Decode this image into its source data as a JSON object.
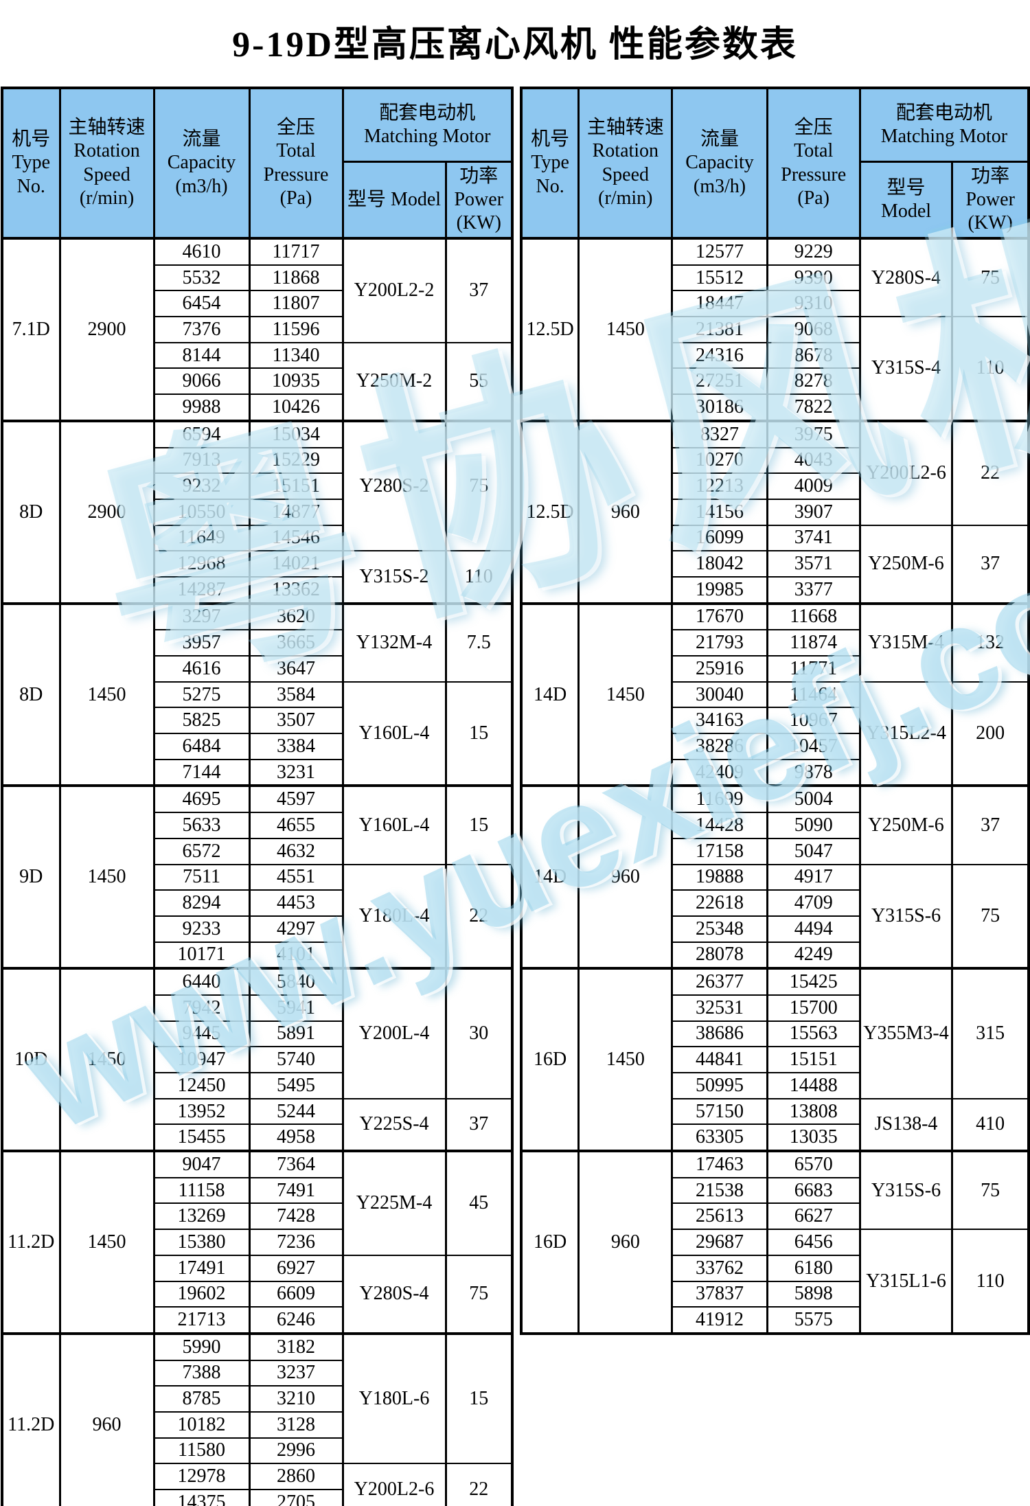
{
  "page_title": "9-19D型高压离心风机 性能参数表",
  "watermark": {
    "logo_text": "粤协风机",
    "site_url_text": "www.yuexiefj.com"
  },
  "colors": {
    "header_bg": "#8EC7F0",
    "group_green": "#CDF4CC",
    "group_white": "#FFFFFF",
    "border": "#000000",
    "watermark": "#7CC9E8"
  },
  "columns": {
    "type_no": [
      "机号",
      "Type",
      "No."
    ],
    "speed": [
      "主轴转速",
      "Rotation",
      "Speed",
      "(r/min)"
    ],
    "capacity": [
      "流量",
      "Capacity",
      "(m3/h)"
    ],
    "pressure": [
      "全压",
      "Total",
      "Pressure",
      "(Pa)"
    ],
    "motor_group": [
      "配套电动机",
      "Matching Motor"
    ],
    "model_left": "型号 Model",
    "model_right": [
      "型号",
      "Model"
    ],
    "power": [
      "功率",
      "Power",
      "(KW)"
    ]
  },
  "left_table": {
    "groups": [
      {
        "type_no": "7.1D",
        "speed": "2900",
        "shade": "white",
        "points": [
          {
            "c": "4610",
            "p": "11717"
          },
          {
            "c": "5532",
            "p": "11868"
          },
          {
            "c": "6454",
            "p": "11807"
          },
          {
            "c": "7376",
            "p": "11596"
          },
          {
            "c": "8144",
            "p": "11340"
          },
          {
            "c": "9066",
            "p": "10935"
          },
          {
            "c": "9988",
            "p": "10426"
          }
        ],
        "motors": [
          {
            "model": "Y200L2-2",
            "power": "37",
            "rows": 4
          },
          {
            "model": "Y250M-2",
            "power": "55",
            "rows": 3
          }
        ]
      },
      {
        "type_no": "8D",
        "speed": "2900",
        "shade": "green",
        "points": [
          {
            "c": "6594",
            "p": "15034"
          },
          {
            "c": "7913",
            "p": "15229"
          },
          {
            "c": "9232",
            "p": "15151"
          },
          {
            "c": "10550",
            "p": "14877"
          },
          {
            "c": "11649",
            "p": "14546"
          },
          {
            "c": "12968",
            "p": "14021"
          },
          {
            "c": "14287",
            "p": "13362"
          }
        ],
        "motors": [
          {
            "model": "Y280S-2",
            "power": "75",
            "rows": 5
          },
          {
            "model": "Y315S-2",
            "power": "110",
            "rows": 2
          }
        ]
      },
      {
        "type_no": "8D",
        "speed": "1450",
        "shade": "white",
        "points": [
          {
            "c": "3297",
            "p": "3620"
          },
          {
            "c": "3957",
            "p": "3665"
          },
          {
            "c": "4616",
            "p": "3647"
          },
          {
            "c": "5275",
            "p": "3584"
          },
          {
            "c": "5825",
            "p": "3507"
          },
          {
            "c": "6484",
            "p": "3384"
          },
          {
            "c": "7144",
            "p": "3231"
          }
        ],
        "motors": [
          {
            "model": "Y132M-4",
            "power": "7.5",
            "rows": 3
          },
          {
            "model": "Y160L-4",
            "power": "15",
            "rows": 4
          }
        ]
      },
      {
        "type_no": "9D",
        "speed": "1450",
        "shade": "green",
        "points": [
          {
            "c": "4695",
            "p": "4597"
          },
          {
            "c": "5633",
            "p": "4655"
          },
          {
            "c": "6572",
            "p": "4632"
          },
          {
            "c": "7511",
            "p": "4551"
          },
          {
            "c": "8294",
            "p": "4453"
          },
          {
            "c": "9233",
            "p": "4297"
          },
          {
            "c": "10171",
            "p": "4101"
          }
        ],
        "motors": [
          {
            "model": "Y160L-4",
            "power": "15",
            "rows": 3
          },
          {
            "model": "Y180L-4",
            "power": "22",
            "rows": 4
          }
        ]
      },
      {
        "type_no": "10D",
        "speed": "1450",
        "shade": "white",
        "points": [
          {
            "c": "6440",
            "p": "5840"
          },
          {
            "c": "7942",
            "p": "5941"
          },
          {
            "c": "9445",
            "p": "5891"
          },
          {
            "c": "10947",
            "p": "5740"
          },
          {
            "c": "12450",
            "p": "5495"
          },
          {
            "c": "13952",
            "p": "5244"
          },
          {
            "c": "15455",
            "p": "4958"
          }
        ],
        "motors": [
          {
            "model": "Y200L-4",
            "power": "30",
            "rows": 5
          },
          {
            "model": "Y225S-4",
            "power": "37",
            "rows": 2
          }
        ]
      },
      {
        "type_no": "11.2D",
        "speed": "1450",
        "shade": "green",
        "points": [
          {
            "c": "9047",
            "p": "7364"
          },
          {
            "c": "11158",
            "p": "7491"
          },
          {
            "c": "13269",
            "p": "7428"
          },
          {
            "c": "15380",
            "p": "7236"
          },
          {
            "c": "17491",
            "p": "6927"
          },
          {
            "c": "19602",
            "p": "6609"
          },
          {
            "c": "21713",
            "p": "6246"
          }
        ],
        "motors": [
          {
            "model": "Y225M-4",
            "power": "45",
            "rows": 4
          },
          {
            "model": "Y280S-4",
            "power": "75",
            "rows": 3
          }
        ]
      },
      {
        "type_no": "11.2D",
        "speed": "960",
        "shade": "white",
        "points": [
          {
            "c": "5990",
            "p": "3182"
          },
          {
            "c": "7388",
            "p": "3237"
          },
          {
            "c": "8785",
            "p": "3210"
          },
          {
            "c": "10182",
            "p": "3128"
          },
          {
            "c": "11580",
            "p": "2996"
          },
          {
            "c": "12978",
            "p": "2860"
          },
          {
            "c": "14375",
            "p": "2705"
          }
        ],
        "motors": [
          {
            "model": "Y180L-6",
            "power": "15",
            "rows": 5
          },
          {
            "model": "Y200L2-6",
            "power": "22",
            "rows": 2
          }
        ]
      }
    ]
  },
  "right_table": {
    "groups": [
      {
        "type_no": "12.5D",
        "speed": "1450",
        "shade": "green",
        "points": [
          {
            "c": "12577",
            "p": "9229"
          },
          {
            "c": "15512",
            "p": "9390"
          },
          {
            "c": "18447",
            "p": "9310"
          },
          {
            "c": "21381",
            "p": "9068"
          },
          {
            "c": "24316",
            "p": "8678"
          },
          {
            "c": "27251",
            "p": "8278"
          },
          {
            "c": "30186",
            "p": "7822"
          }
        ],
        "motors": [
          {
            "model": "Y280S-4",
            "power": "75",
            "rows": 3
          },
          {
            "model": "Y315S-4",
            "power": "110",
            "rows": 4
          }
        ]
      },
      {
        "type_no": "12.5D",
        "speed": "960",
        "shade": "white",
        "points": [
          {
            "c": "8327",
            "p": "3975"
          },
          {
            "c": "10270",
            "p": "4043"
          },
          {
            "c": "12213",
            "p": "4009"
          },
          {
            "c": "14156",
            "p": "3907"
          },
          {
            "c": "16099",
            "p": "3741"
          },
          {
            "c": "18042",
            "p": "3571"
          },
          {
            "c": "19985",
            "p": "3377"
          }
        ],
        "motors": [
          {
            "model": "Y200L2-6",
            "power": "22",
            "rows": 4
          },
          {
            "model": "Y250M-6",
            "power": "37",
            "rows": 3
          }
        ]
      },
      {
        "type_no": "14D",
        "speed": "1450",
        "shade": "green",
        "points": [
          {
            "c": "17670",
            "p": "11668"
          },
          {
            "c": "21793",
            "p": "11874"
          },
          {
            "c": "25916",
            "p": "11771"
          },
          {
            "c": "30040",
            "p": "11464"
          },
          {
            "c": "34163",
            "p": "10967"
          },
          {
            "c": "38286",
            "p": "10457"
          },
          {
            "c": "42409",
            "p": "9878"
          }
        ],
        "motors": [
          {
            "model": "Y315M-4",
            "power": "132",
            "rows": 3
          },
          {
            "model": "Y315L2-4",
            "power": "200",
            "rows": 4
          }
        ]
      },
      {
        "type_no": "14D",
        "speed": "960",
        "shade": "white",
        "points": [
          {
            "c": "11699",
            "p": "5004"
          },
          {
            "c": "14428",
            "p": "5090"
          },
          {
            "c": "17158",
            "p": "5047"
          },
          {
            "c": "19888",
            "p": "4917"
          },
          {
            "c": "22618",
            "p": "4709"
          },
          {
            "c": "25348",
            "p": "4494"
          },
          {
            "c": "28078",
            "p": "4249"
          }
        ],
        "motors": [
          {
            "model": "Y250M-6",
            "power": "37",
            "rows": 3
          },
          {
            "model": "Y315S-6",
            "power": "75",
            "rows": 4
          }
        ]
      },
      {
        "type_no": "16D",
        "speed": "1450",
        "shade": "green",
        "points": [
          {
            "c": "26377",
            "p": "15425"
          },
          {
            "c": "32531",
            "p": "15700"
          },
          {
            "c": "38686",
            "p": "15563"
          },
          {
            "c": "44841",
            "p": "15151"
          },
          {
            "c": "50995",
            "p": "14488"
          },
          {
            "c": "57150",
            "p": "13808"
          },
          {
            "c": "63305",
            "p": "13035"
          }
        ],
        "motors": [
          {
            "model": "Y355M3-4",
            "power": "315",
            "rows": 5
          },
          {
            "model": "JS138-4",
            "power": "410",
            "rows": 2
          }
        ]
      },
      {
        "type_no": "16D",
        "speed": "960",
        "shade": "white",
        "points": [
          {
            "c": "17463",
            "p": "6570"
          },
          {
            "c": "21538",
            "p": "6683"
          },
          {
            "c": "25613",
            "p": "6627"
          },
          {
            "c": "29687",
            "p": "6456"
          },
          {
            "c": "33762",
            "p": "6180"
          },
          {
            "c": "37837",
            "p": "5898"
          },
          {
            "c": "41912",
            "p": "5575"
          }
        ],
        "motors": [
          {
            "model": "Y315S-6",
            "power": "75",
            "rows": 3
          },
          {
            "model": "Y315L1-6",
            "power": "110",
            "rows": 4
          }
        ]
      }
    ]
  }
}
